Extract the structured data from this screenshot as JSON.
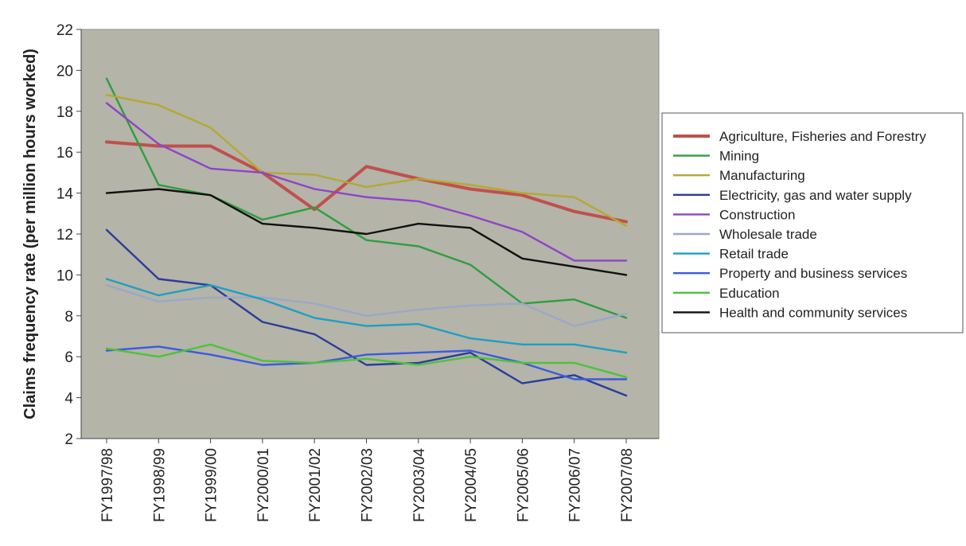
{
  "chart_data": {
    "type": "line",
    "title": "",
    "xlabel": "",
    "ylabel": "Claims frequency rate (per million hours worked)",
    "ylim": [
      2,
      22
    ],
    "yticks": [
      2,
      4,
      6,
      8,
      10,
      12,
      14,
      16,
      18,
      20,
      22
    ],
    "grid": false,
    "legend_position": "right",
    "plot_background": "#b4b4a8",
    "categories": [
      "FY1997/98",
      "FY1998/99",
      "FY1999/00",
      "FY2000/01",
      "FY2001/02",
      "FY2002/03",
      "FY2003/04",
      "FY2004/05",
      "FY2005/06",
      "FY2006/07",
      "FY2007/08"
    ],
    "series": [
      {
        "name": "Agriculture, Fisheries and Forestry",
        "color": "#c0504d",
        "values": [
          16.5,
          16.3,
          16.3,
          15.0,
          13.2,
          15.3,
          14.7,
          14.2,
          13.9,
          13.1,
          12.6
        ]
      },
      {
        "name": "Mining",
        "color": "#2e9e3e",
        "values": [
          19.6,
          14.4,
          13.9,
          12.7,
          13.3,
          11.7,
          11.4,
          10.5,
          8.6,
          8.8,
          7.9
        ]
      },
      {
        "name": "Manufacturing",
        "color": "#b5a832",
        "values": [
          18.8,
          18.3,
          17.2,
          15.0,
          14.9,
          14.3,
          14.7,
          14.4,
          14.0,
          13.8,
          12.4
        ]
      },
      {
        "name": "Electricity, gas and water supply",
        "color": "#2a3d9a",
        "values": [
          12.2,
          9.8,
          9.5,
          7.7,
          7.1,
          5.6,
          5.7,
          6.2,
          4.7,
          5.1,
          4.1
        ]
      },
      {
        "name": "Construction",
        "color": "#8e44c8",
        "values": [
          18.4,
          16.4,
          15.2,
          15.0,
          14.2,
          13.8,
          13.6,
          12.9,
          12.1,
          10.7,
          10.7
        ]
      },
      {
        "name": "Wholesale trade",
        "color": "#9aa8c8",
        "values": [
          9.5,
          8.7,
          8.9,
          8.9,
          8.6,
          8.0,
          8.3,
          8.5,
          8.6,
          7.5,
          8.1
        ]
      },
      {
        "name": "Retail trade",
        "color": "#1f9fc4",
        "values": [
          9.8,
          9.0,
          9.5,
          8.8,
          7.9,
          7.5,
          7.6,
          6.9,
          6.6,
          6.6,
          6.2
        ]
      },
      {
        "name": "Property and business services",
        "color": "#3c5ae0",
        "values": [
          6.3,
          6.5,
          6.1,
          5.6,
          5.7,
          6.1,
          6.2,
          6.3,
          5.7,
          4.9,
          4.9
        ]
      },
      {
        "name": "Education",
        "color": "#4ec23a",
        "values": [
          6.4,
          6.0,
          6.6,
          5.8,
          5.7,
          5.9,
          5.6,
          6.0,
          5.7,
          5.7,
          5.0
        ]
      },
      {
        "name": "Health and community services",
        "color": "#111111",
        "values": [
          14.0,
          14.2,
          13.9,
          12.5,
          12.3,
          12.0,
          12.5,
          12.3,
          10.8,
          10.4,
          10.0
        ]
      }
    ]
  }
}
